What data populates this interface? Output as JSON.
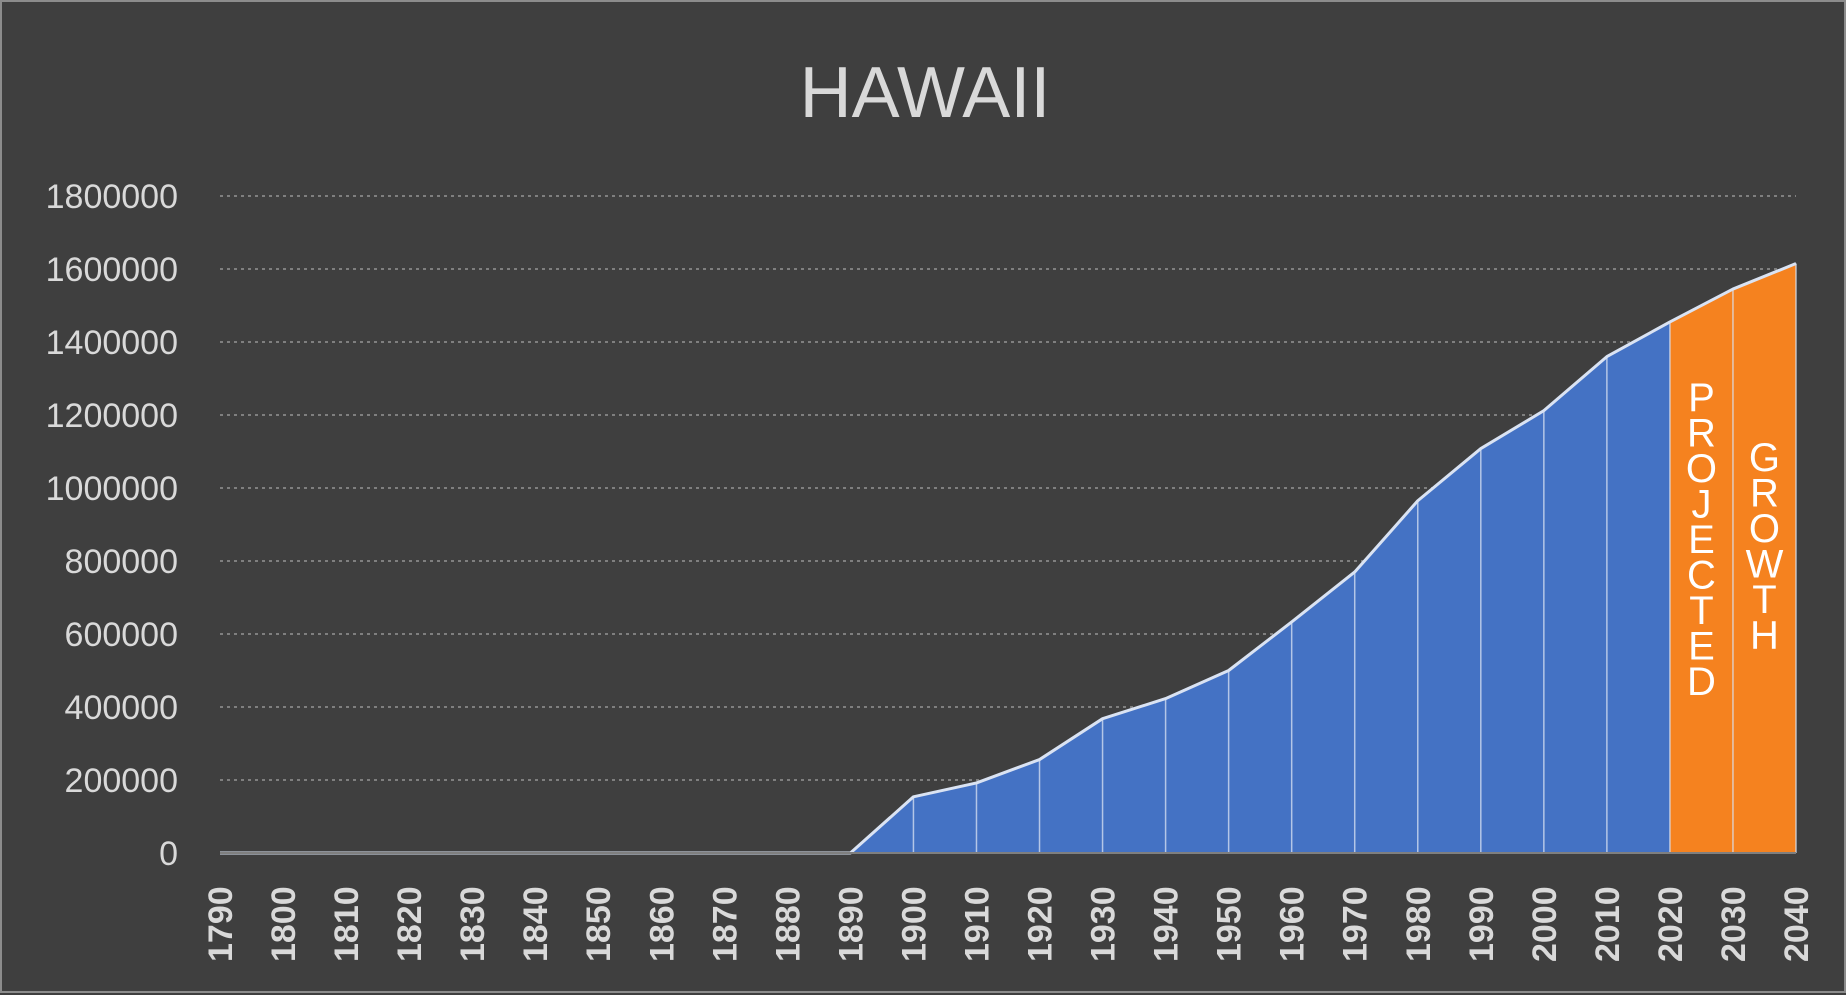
{
  "chart_data": {
    "type": "area",
    "title": "HAWAII",
    "xlabel": "",
    "ylabel": "",
    "x": [
      1790,
      1800,
      1810,
      1820,
      1830,
      1840,
      1850,
      1860,
      1870,
      1880,
      1890,
      1900,
      1910,
      1920,
      1930,
      1940,
      1950,
      1960,
      1970,
      1980,
      1990,
      2000,
      2010,
      2020,
      2030,
      2040
    ],
    "series": [
      {
        "values": [
          0,
          0,
          0,
          0,
          0,
          0,
          0,
          0,
          0,
          0,
          0,
          154000,
          192000,
          256000,
          368000,
          423000,
          500000,
          633000,
          770000,
          965000,
          1108000,
          1212000,
          1360000,
          1455000,
          1545000,
          1615000
        ]
      }
    ],
    "y_ticks": [
      0,
      200000,
      400000,
      600000,
      800000,
      1000000,
      1200000,
      1400000,
      1600000,
      1800000
    ],
    "ylim": [
      0,
      1800000
    ],
    "grid": true,
    "legend": "none",
    "projection": {
      "from": 2020,
      "to": 2040,
      "word1": "PROJECTED",
      "word2": "GROWTH"
    },
    "colors": {
      "background": "#3f3f3f",
      "area_actual": "#4472c4",
      "area_projected": "#f5821f",
      "line": "#dae3f3",
      "grid": "#7f7f7f",
      "text": "#d9d9d9",
      "annotation": "#ffffff"
    }
  }
}
